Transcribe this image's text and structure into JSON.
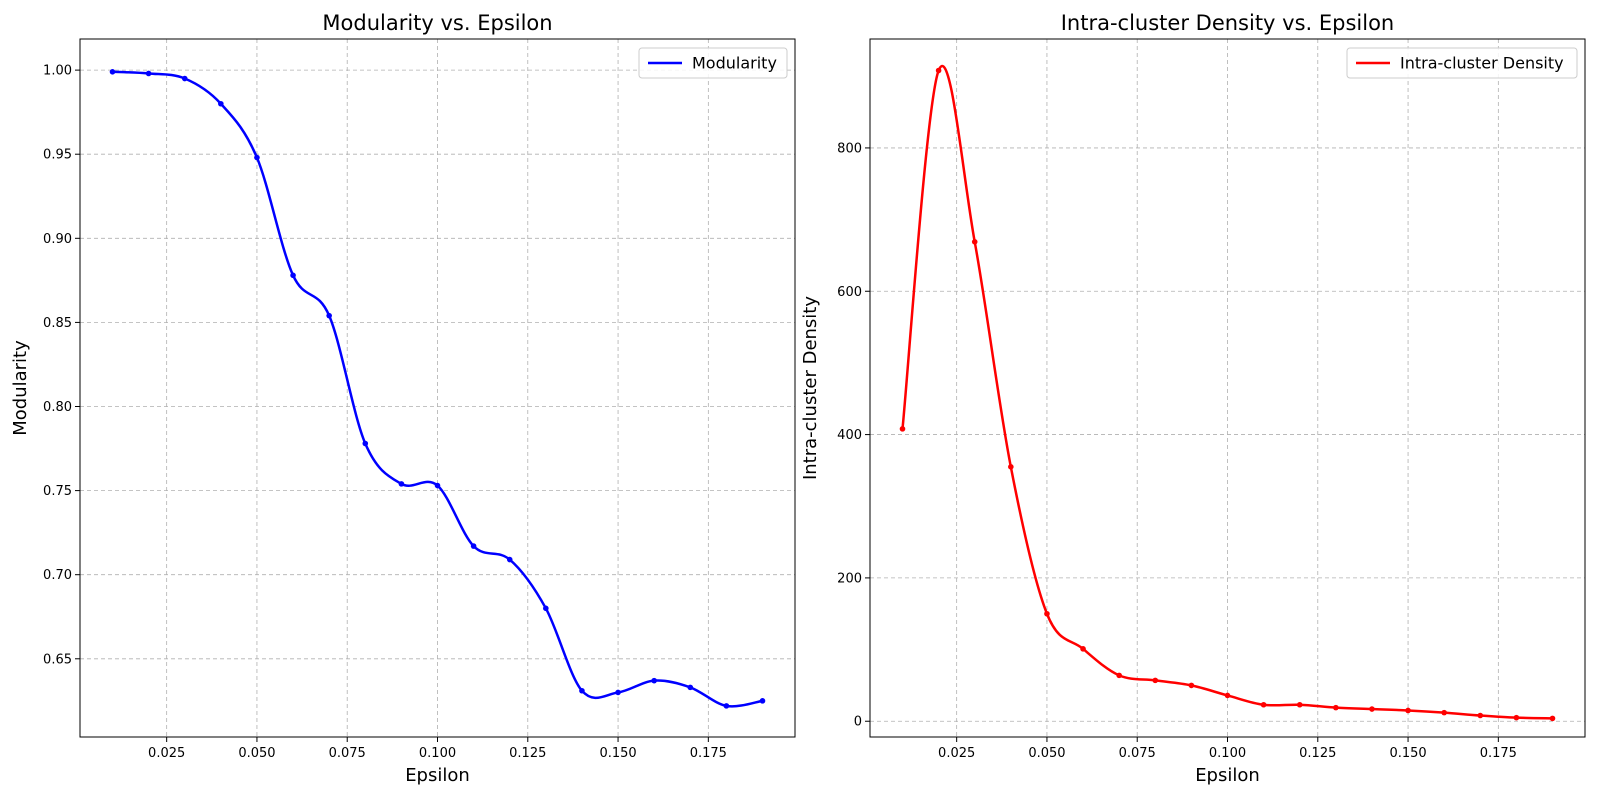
{
  "chart_data": [
    {
      "type": "line",
      "title": "Modularity vs. Epsilon",
      "xlabel": "Epsilon",
      "ylabel": "Modularity",
      "xlim": [
        0.001,
        0.199
      ],
      "ylim": [
        0.6035,
        1.0185
      ],
      "xticks": [
        0.025,
        0.05,
        0.075,
        0.1,
        0.125,
        0.15,
        0.175
      ],
      "xtick_labels": [
        "0.025",
        "0.050",
        "0.075",
        "0.100",
        "0.125",
        "0.150",
        "0.175"
      ],
      "yticks": [
        0.65,
        0.7,
        0.75,
        0.8,
        0.85,
        0.9,
        0.95,
        1.0
      ],
      "ytick_labels": [
        "0.65",
        "0.70",
        "0.75",
        "0.80",
        "0.85",
        "0.90",
        "0.95",
        "1.00"
      ],
      "grid": true,
      "legend_position": "top-right",
      "color": "#0000ff",
      "series": [
        {
          "name": "Modularity",
          "x": [
            0.01,
            0.02,
            0.03,
            0.04,
            0.05,
            0.06,
            0.07,
            0.08,
            0.09,
            0.1,
            0.11,
            0.12,
            0.13,
            0.14,
            0.15,
            0.16,
            0.17,
            0.18,
            0.19
          ],
          "y": [
            0.999,
            0.998,
            0.995,
            0.98,
            0.948,
            0.878,
            0.854,
            0.778,
            0.754,
            0.753,
            0.717,
            0.709,
            0.68,
            0.631,
            0.63,
            0.637,
            0.633,
            0.622,
            0.625
          ]
        }
      ]
    },
    {
      "type": "line",
      "title": "Intra-cluster Density vs. Epsilon",
      "xlabel": "Epsilon",
      "ylabel": "Intra-cluster Density",
      "xlim": [
        0.001,
        0.199
      ],
      "ylim": [
        -22,
        952
      ],
      "xticks": [
        0.025,
        0.05,
        0.075,
        0.1,
        0.125,
        0.15,
        0.175
      ],
      "xtick_labels": [
        "0.025",
        "0.050",
        "0.075",
        "0.100",
        "0.125",
        "0.150",
        "0.175"
      ],
      "yticks": [
        0,
        200,
        400,
        600,
        800
      ],
      "ytick_labels": [
        "0",
        "200",
        "400",
        "600",
        "800"
      ],
      "grid": true,
      "legend_position": "top-right",
      "color": "#ff0000",
      "series": [
        {
          "name": "Intra-cluster Density",
          "x": [
            0.01,
            0.02,
            0.03,
            0.04,
            0.05,
            0.06,
            0.07,
            0.08,
            0.09,
            0.1,
            0.11,
            0.12,
            0.13,
            0.14,
            0.15,
            0.16,
            0.17,
            0.18,
            0.19
          ],
          "y": [
            408,
            908,
            669,
            355,
            150,
            101,
            64,
            57,
            50,
            36,
            23,
            23,
            19,
            17,
            15,
            12,
            8,
            5,
            4
          ]
        }
      ]
    }
  ]
}
